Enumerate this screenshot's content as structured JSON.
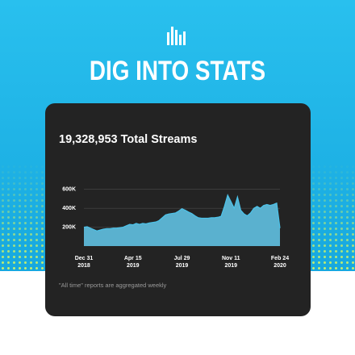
{
  "header": {
    "title": "DIG INTO STATS"
  },
  "chart_data": {
    "type": "area",
    "title": "19,328,953 Total Streams",
    "note": "\"All time\" reports are aggregated weekly",
    "categories": [
      "Dec 31\n2018",
      null,
      null,
      null,
      null,
      null,
      null,
      null,
      null,
      null,
      null,
      null,
      null,
      null,
      null,
      "Apr 15\n2019",
      null,
      null,
      null,
      null,
      null,
      null,
      null,
      null,
      null,
      null,
      null,
      null,
      null,
      null,
      "Jul 29\n2019",
      null,
      null,
      null,
      null,
      null,
      null,
      null,
      null,
      null,
      null,
      null,
      null,
      null,
      null,
      "Nov 11\n2019",
      null,
      null,
      null,
      null,
      null,
      null,
      null,
      null,
      null,
      null,
      null,
      null,
      null,
      null,
      "Feb 24\n2020"
    ],
    "values": [
      200000,
      205000,
      190000,
      175000,
      160000,
      170000,
      180000,
      185000,
      185000,
      190000,
      190000,
      195000,
      200000,
      215000,
      230000,
      225000,
      240000,
      230000,
      240000,
      235000,
      245000,
      250000,
      255000,
      270000,
      300000,
      330000,
      340000,
      345000,
      350000,
      370000,
      395000,
      380000,
      360000,
      345000,
      320000,
      300000,
      295000,
      295000,
      295000,
      300000,
      300000,
      305000,
      315000,
      420000,
      540000,
      470000,
      400000,
      520000,
      380000,
      340000,
      320000,
      350000,
      400000,
      420000,
      400000,
      430000,
      440000,
      430000,
      440000,
      455000,
      190000
    ],
    "color": "#4cc3ea",
    "fill_color": "#5ab1cf",
    "ylim": [
      0,
      700000
    ],
    "yticks": [
      {
        "value": 200000,
        "label": "200K"
      },
      {
        "value": 400000,
        "label": "400K"
      },
      {
        "value": 600000,
        "label": "600K"
      }
    ],
    "grid": true
  }
}
